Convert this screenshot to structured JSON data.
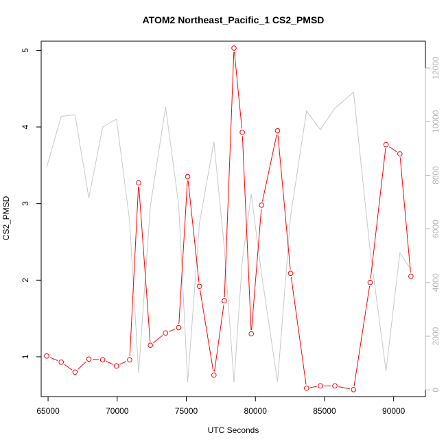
{
  "chart_data": {
    "type": "line",
    "title": "ATOM2 Northeast_Pacific_1 CS2_PMSD",
    "xlabel": "UTC Seconds",
    "ylabel": "CS2_PMSD",
    "xlim": [
      64500,
      92300
    ],
    "ylim": [
      0.48,
      5.12
    ],
    "y2lim": [
      -250,
      13000
    ],
    "x_ticks": [
      65000,
      70000,
      75000,
      80000,
      85000,
      90000
    ],
    "y_ticks": [
      1,
      2,
      3,
      4,
      5
    ],
    "y2_ticks": [
      0,
      2000,
      4000,
      6000,
      8000,
      10000,
      12000
    ],
    "series": [
      {
        "axis": "left",
        "color": "#ff0000",
        "style": "line+circles",
        "x": [
          64900,
          65950,
          66950,
          67950,
          68950,
          69950,
          70900,
          71550,
          72400,
          73500,
          74450,
          75100,
          75950,
          77000,
          77750,
          78450,
          79050,
          79700,
          80450,
          81600,
          82550,
          83700,
          84700,
          85750,
          87100,
          88300,
          89450,
          90450,
          91250
        ],
        "y": [
          1.01,
          0.93,
          0.8,
          0.97,
          0.96,
          0.88,
          0.96,
          3.27,
          1.15,
          1.31,
          1.38,
          3.35,
          1.92,
          0.76,
          1.73,
          5.03,
          3.93,
          1.3,
          2.98,
          3.95,
          2.09,
          0.59,
          0.62,
          0.62,
          0.57,
          1.97,
          3.77,
          3.65,
          2.05
        ]
      },
      {
        "axis": "right",
        "color": "#c8c8c8",
        "style": "line",
        "x": [
          64900,
          65950,
          66950,
          67950,
          68950,
          69950,
          70900,
          71550,
          72400,
          73500,
          74450,
          75100,
          75950,
          77000,
          77750,
          78450,
          79050,
          79700,
          80450,
          81600,
          82550,
          83700,
          84700,
          85750,
          87100,
          88300,
          89450,
          90450,
          91250
        ],
        "y": [
          8300,
          10200,
          10250,
          7150,
          9800,
          10100,
          6300,
          630,
          6850,
          10550,
          6900,
          280,
          6200,
          9250,
          5300,
          280,
          4800,
          7300,
          4300,
          300,
          6500,
          10400,
          9700,
          10500,
          11100,
          5200,
          700,
          5100,
          4500
        ]
      }
    ]
  }
}
